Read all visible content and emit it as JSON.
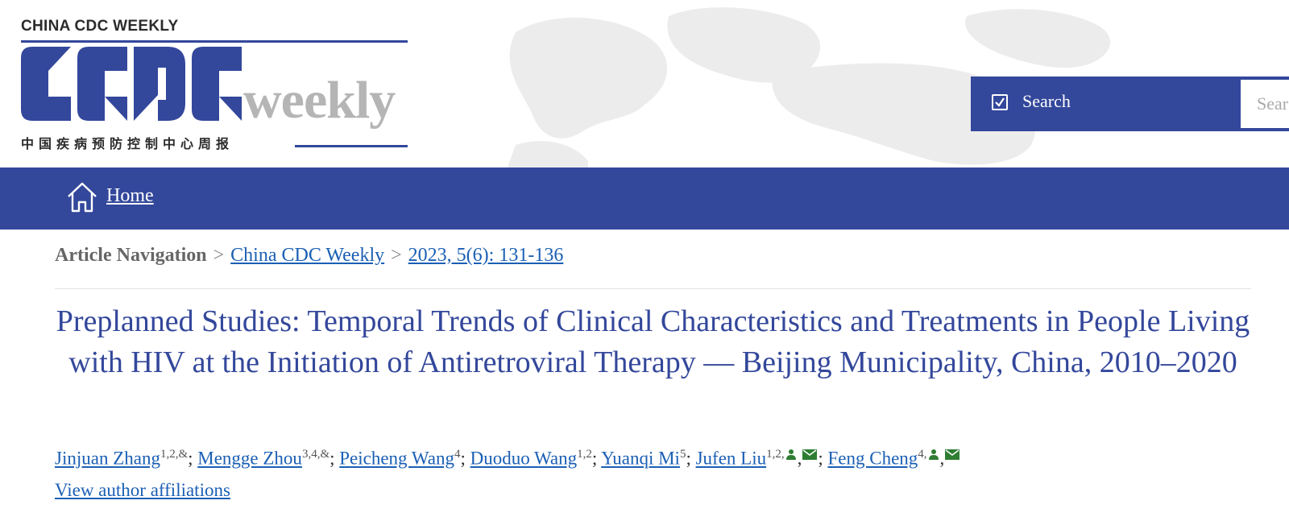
{
  "header": {
    "brand_line": "CHINA CDC WEEKLY",
    "logo_main": "CCDC",
    "logo_weekly": "weekly",
    "logo_chinese": "中国疾病预防控制中心周报",
    "brand_color": "#33479b"
  },
  "search": {
    "label": "Search",
    "placeholder": "Search",
    "checkbox_checked": true
  },
  "nav": {
    "home_label": "Home",
    "home_icon": "home-icon"
  },
  "breadcrumb": {
    "label": "Article Navigation",
    "separator": ">",
    "items": [
      {
        "label": "China CDC Weekly"
      },
      {
        "label": "2023, 5(6): 131-136"
      }
    ]
  },
  "article": {
    "title": "Preplanned Studies: Temporal Trends of Clinical Characteristics and Treatments in People Living with HIV at the Initiation of Antiretroviral Therapy — Beijing Municipality, China, 2010–2020",
    "authors": [
      {
        "name": "Jinjuan Zhang",
        "sup": "1,2,&"
      },
      {
        "name": "Mengge Zhou",
        "sup": "3,4,&"
      },
      {
        "name": "Peicheng Wang",
        "sup": "4"
      },
      {
        "name": "Duoduo Wang",
        "sup": "1,2"
      },
      {
        "name": "Yuanqi Mi",
        "sup": "5"
      },
      {
        "name": "Jufen Liu",
        "sup": "1,2,"
      },
      {
        "name": "Feng Cheng",
        "sup": "4,"
      }
    ],
    "view_affiliations": "View author affiliations"
  }
}
